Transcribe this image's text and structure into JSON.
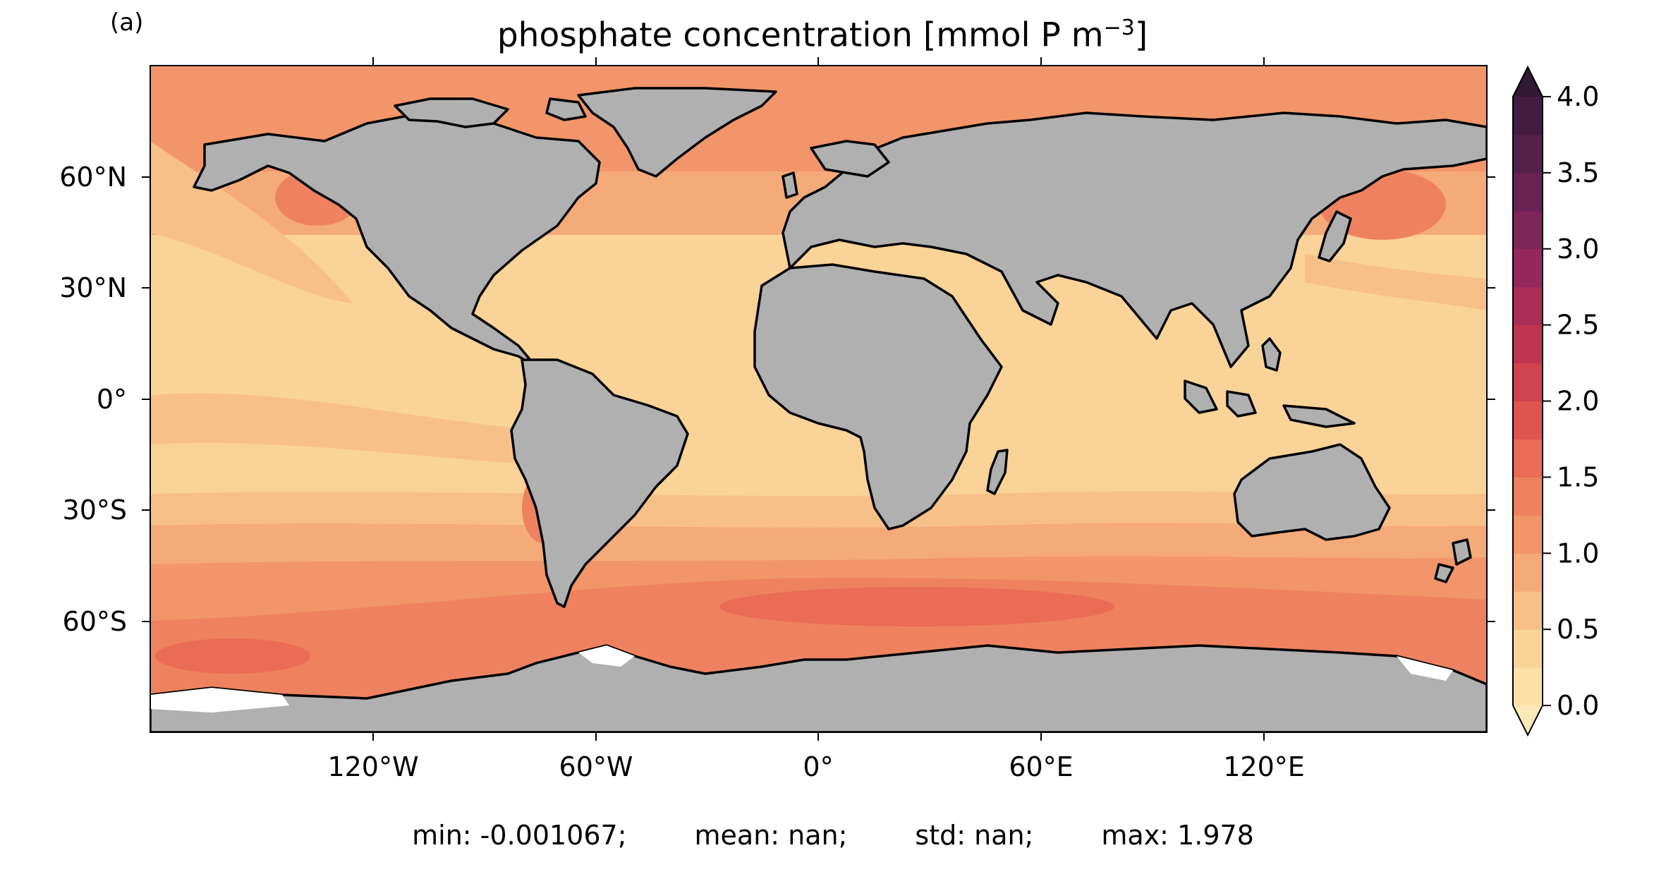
{
  "panel_label": "(a)",
  "title": {
    "text": "phosphate concentration [mmol P m",
    "sup": "−3",
    "tail": "]"
  },
  "map": {
    "projection": "PlateCarree",
    "lon_range": [
      -180,
      180
    ],
    "lat_range": [
      -90,
      90
    ],
    "land_color": "#b0b0b0",
    "no_data_color": "#ffffff",
    "lon_ticks": [
      "120°W",
      "60°W",
      "0°",
      "60°E",
      "120°E"
    ],
    "lat_ticks": [
      "60°N",
      "30°N",
      "0°",
      "30°S",
      "60°S"
    ]
  },
  "colorbar": {
    "min": 0.0,
    "max": 4.0,
    "step": 0.25,
    "extend": "both",
    "cmap": "flare (light yellow → dark purple)",
    "tick_labels": [
      "0.0",
      "0.5",
      "1.0",
      "1.5",
      "2.0",
      "2.5",
      "3.0",
      "3.5",
      "4.0"
    ],
    "colors": [
      "#fde0a7",
      "#fad398",
      "#f8c089",
      "#f5aa79",
      "#f2956a",
      "#ee8260",
      "#e96c57",
      "#e05450",
      "#d0444f",
      "#bf3551",
      "#aa2e57",
      "#94285a",
      "#7c2559",
      "#682253",
      "#55214c",
      "#431d41",
      "#311833"
    ]
  },
  "stats": {
    "min": "min: -0.001067;",
    "mean": "mean: nan;",
    "std": "std: nan;",
    "max": "max: 1.978"
  }
}
